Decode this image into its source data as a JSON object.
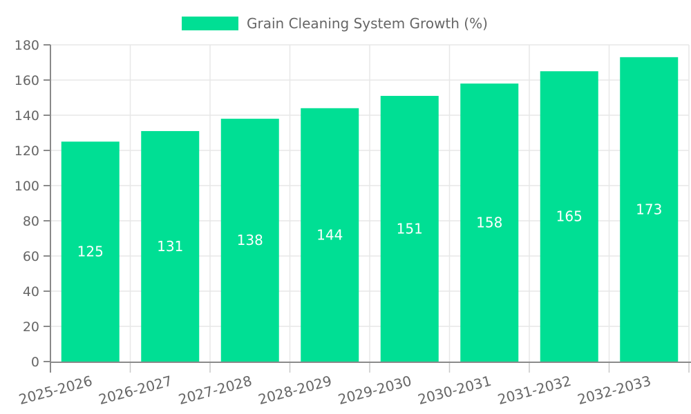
{
  "legend": {
    "label": "Grain Cleaning System Growth (%)"
  },
  "colors": {
    "bar": "#00DF94",
    "grid": "#E7E7E7",
    "axis": "#8A8A8A",
    "x_tick": "#C9C9C9",
    "text": "#666666",
    "value_text": "#FFFFFF",
    "background": "#FFFFFF"
  },
  "chart_data": {
    "type": "bar",
    "title": "Grain Cleaning System Growth (%)",
    "categories": [
      "2025-2026",
      "2026-2027",
      "2027-2028",
      "2028-2029",
      "2029-2030",
      "2030-2031",
      "2031-2032",
      "2032-2033"
    ],
    "values": [
      125,
      131,
      138,
      144,
      151,
      158,
      165,
      173
    ],
    "xlabel": "",
    "ylabel": "",
    "ylim": [
      0,
      180
    ],
    "ytick_step": 20,
    "yticks": [
      0,
      20,
      40,
      60,
      80,
      100,
      120,
      140,
      160,
      180
    ],
    "grid": true,
    "legend_position": "top-center",
    "value_labels": "inside-center",
    "x_label_rotation_deg": -15
  }
}
